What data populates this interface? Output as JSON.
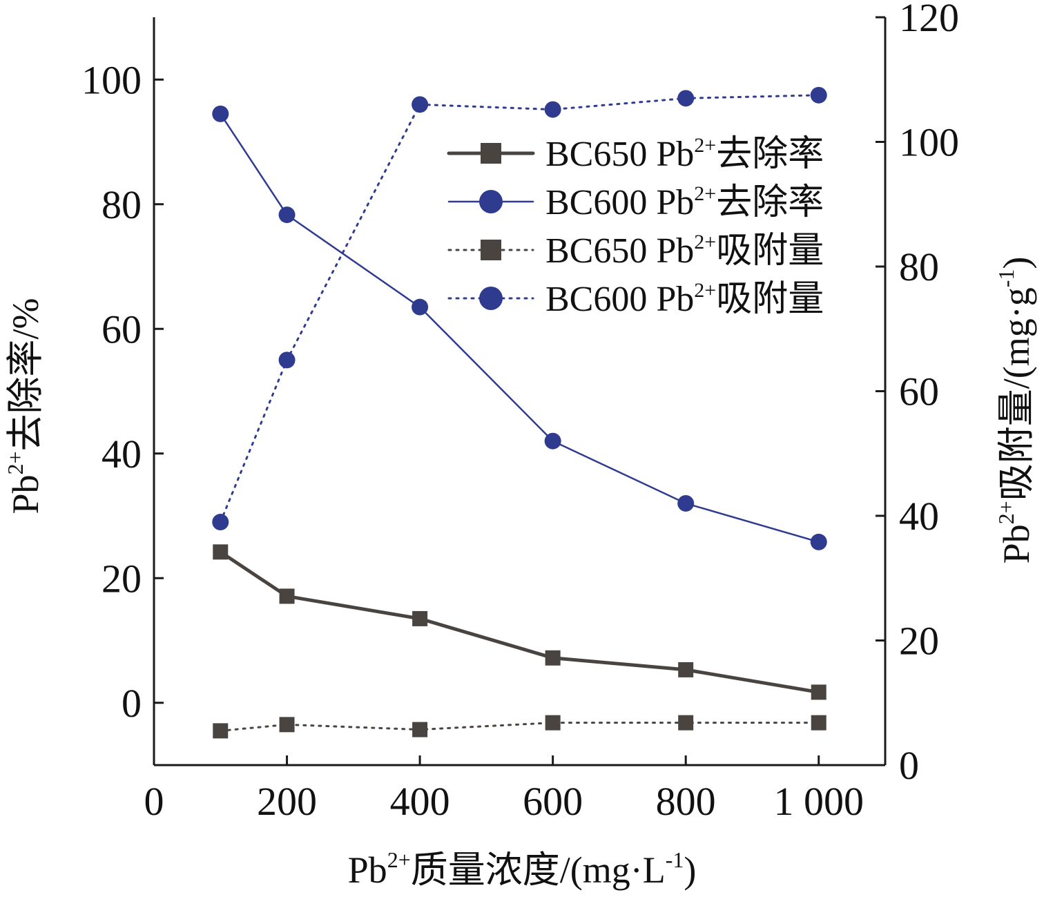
{
  "chart_data": {
    "type": "line",
    "x": [
      100,
      200,
      400,
      600,
      800,
      1000
    ],
    "xlim": [
      0,
      1100
    ],
    "xticks": [
      0,
      200,
      400,
      600,
      800,
      1000
    ],
    "xtick_labels": [
      "0",
      "200",
      "400",
      "600",
      "800",
      "1 000"
    ],
    "ylim_left": [
      -10,
      110
    ],
    "yticks_left": [
      0,
      20,
      40,
      60,
      80,
      100
    ],
    "ylim_right": [
      0,
      120
    ],
    "yticks_right": [
      0,
      20,
      40,
      60,
      80,
      100,
      120
    ],
    "xlabel": {
      "main": "Pb",
      "sup": "2+",
      "rest": "质量浓度/(mg·L",
      "unit_sup": "-1",
      "end": ")"
    },
    "ylabel_left": {
      "main": "Pb",
      "sup": "2+",
      "rest": "去除率/%"
    },
    "ylabel_right": {
      "main": "Pb",
      "sup": "2+",
      "rest": "吸附量/(mg·g",
      "unit_sup": "-1",
      "end": ")"
    },
    "legend_position": "top-right",
    "grid": false,
    "series": [
      {
        "name": "BC650 Pb2+去除率",
        "name_parts": [
          "BC650 Pb",
          "2+",
          "去除率"
        ],
        "axis": "left",
        "marker": "square",
        "line": "solid",
        "color": "#4a4440",
        "values": [
          24.2,
          17.1,
          13.5,
          7.2,
          5.3,
          1.7
        ]
      },
      {
        "name": "BC600 Pb2+去除率",
        "name_parts": [
          "BC600 Pb",
          "2+",
          "去除率"
        ],
        "axis": "left",
        "marker": "circle",
        "line": "solid",
        "color": "#2e3b8f",
        "values": [
          94.5,
          78.3,
          63.5,
          42.0,
          32.0,
          25.8
        ]
      },
      {
        "name": "BC650 Pb2+吸附量",
        "name_parts": [
          "BC650 Pb",
          "2+",
          "吸附量"
        ],
        "axis": "right",
        "marker": "square",
        "line": "dotted",
        "color": "#4a4440",
        "values": [
          5.5,
          6.5,
          5.7,
          6.8,
          6.8,
          6.8
        ]
      },
      {
        "name": "BC600 Pb2+吸附量",
        "name_parts": [
          "BC600 Pb",
          "2+",
          "吸附量"
        ],
        "axis": "right",
        "marker": "circle",
        "line": "dotted",
        "color": "#2e3b8f",
        "values": [
          39.0,
          65.0,
          106.0,
          105.2,
          107.0,
          107.5
        ]
      }
    ]
  }
}
